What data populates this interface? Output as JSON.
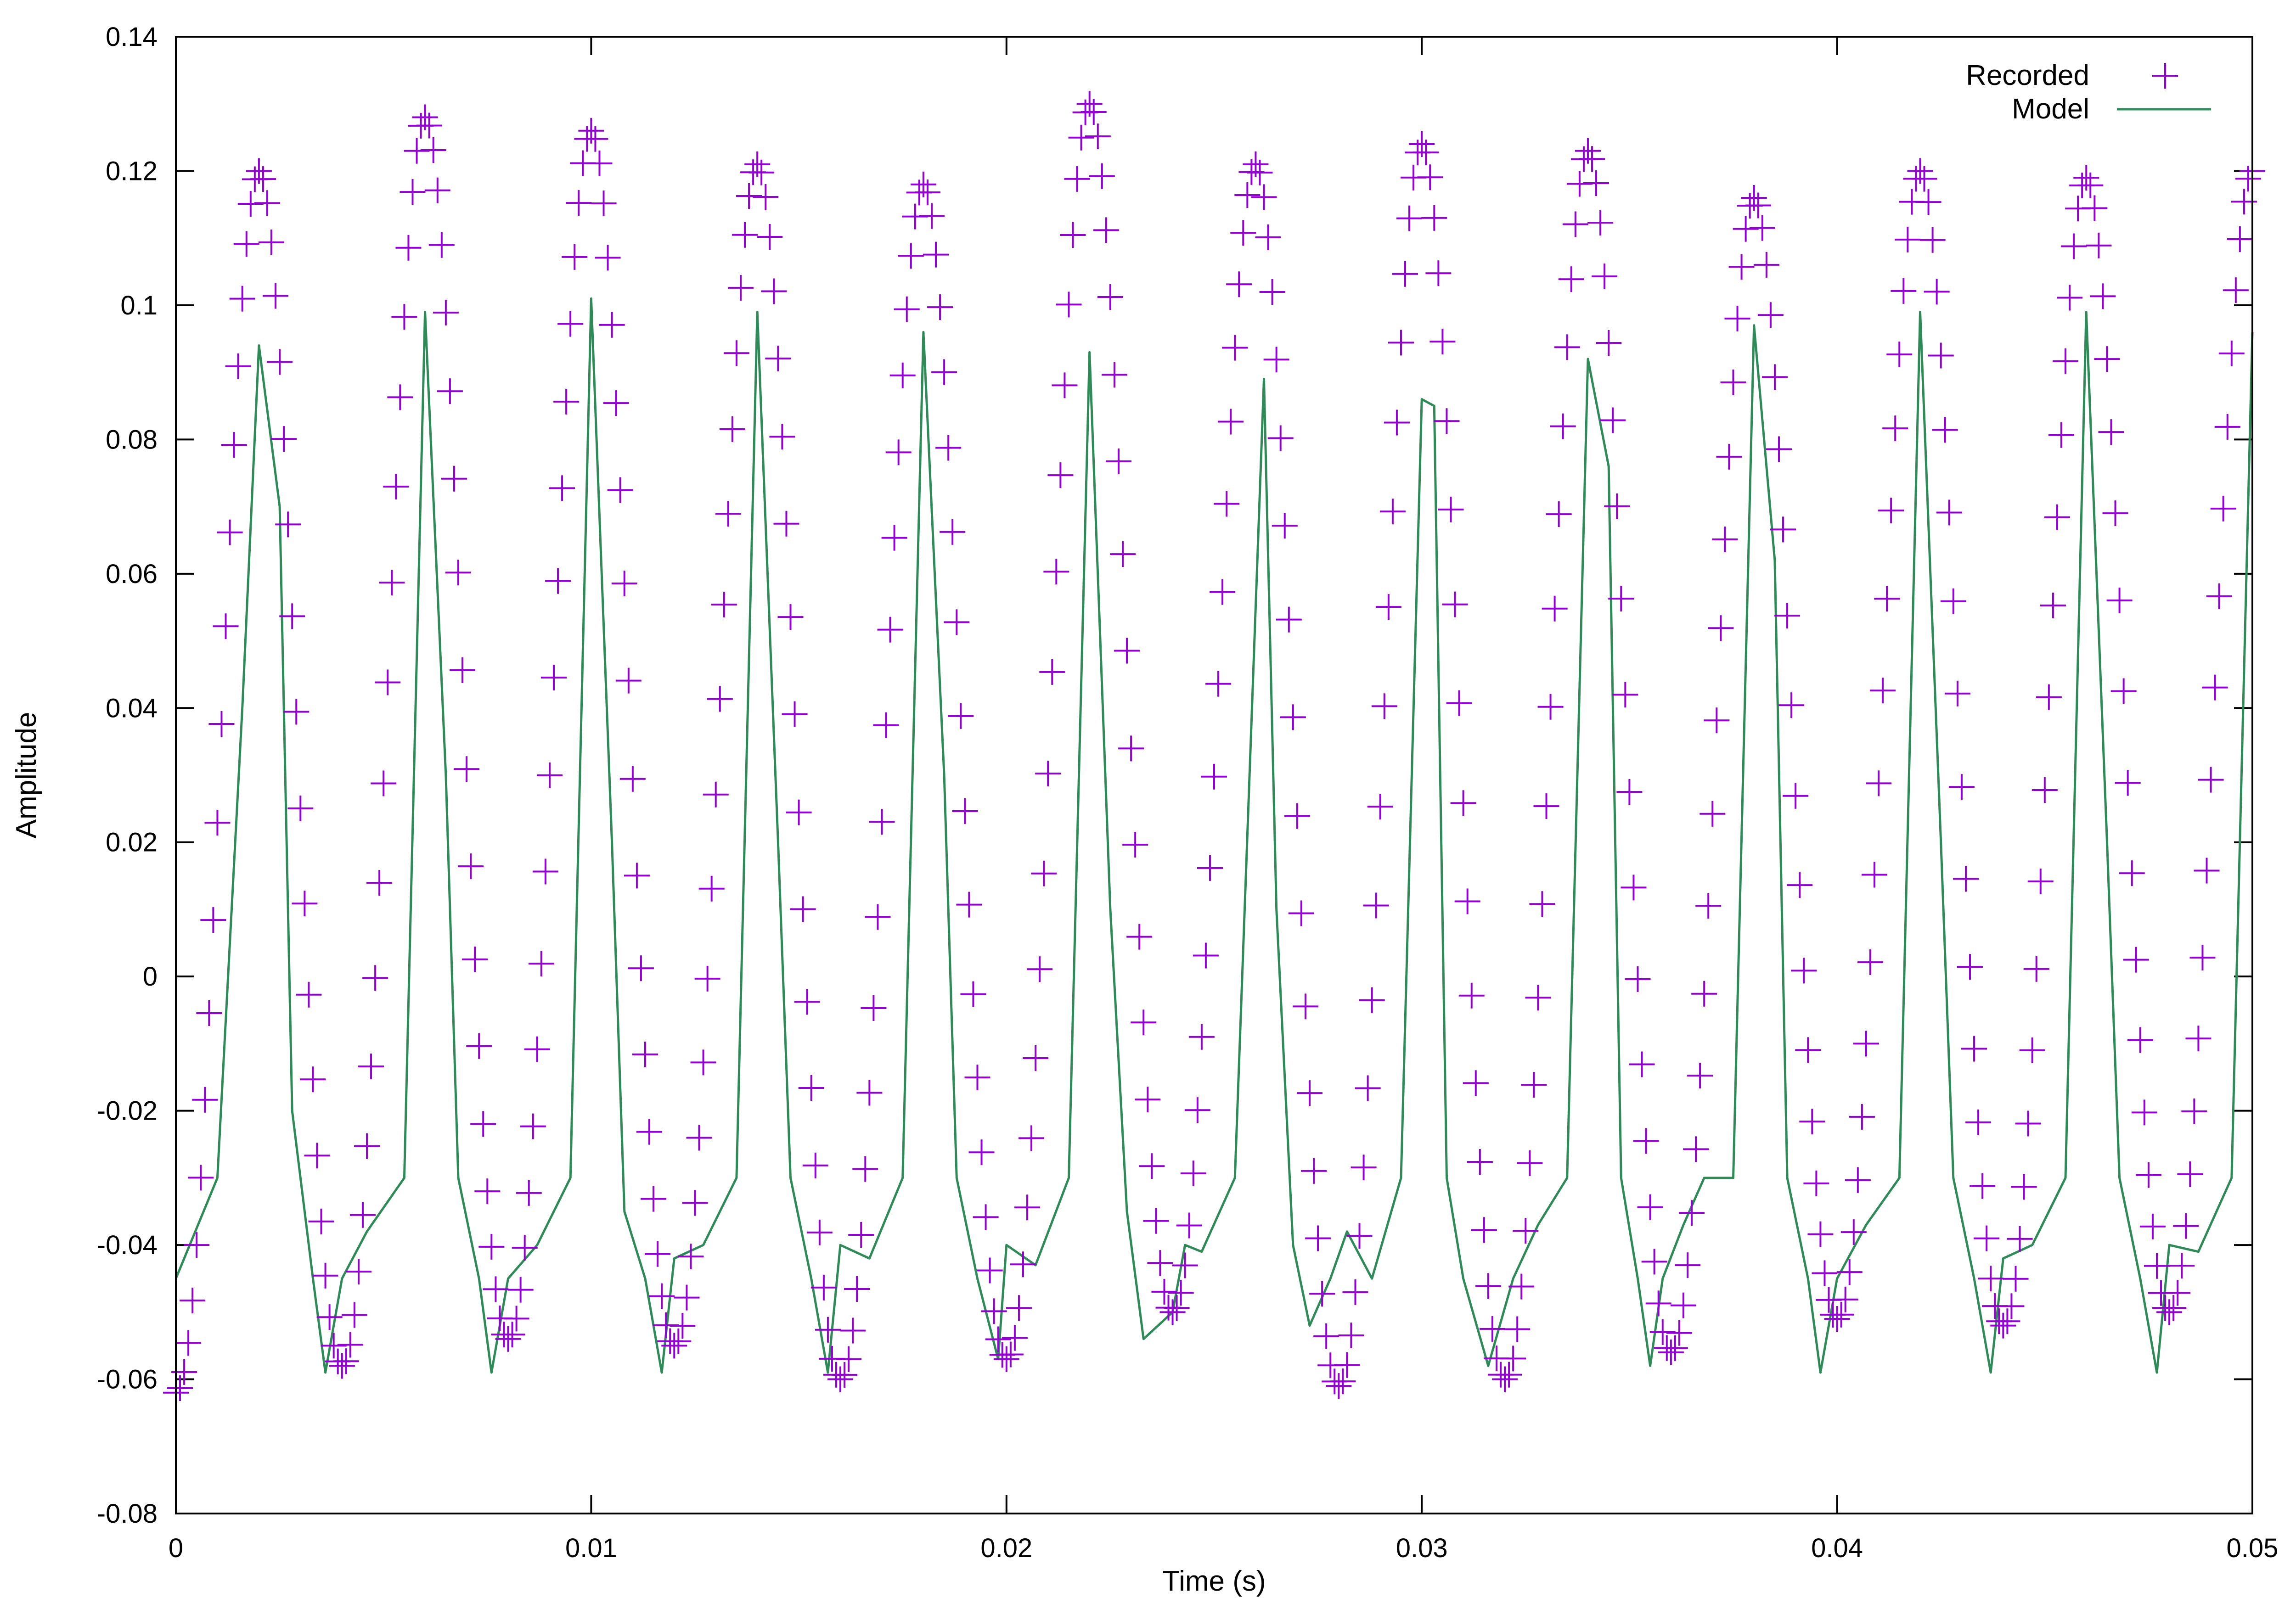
{
  "chart_data": {
    "type": "line",
    "title": "",
    "xlabel": "Time (s)",
    "ylabel": "Amplitude",
    "xlim": [
      0,
      0.05
    ],
    "ylim": [
      -0.08,
      0.14
    ],
    "x_ticks": [
      "0",
      "0.01",
      "0.02",
      "0.03",
      "0.04",
      "0.05"
    ],
    "x_tick_values": [
      0,
      0.01,
      0.02,
      0.03,
      0.04,
      0.05
    ],
    "y_ticks": [
      "-0.08",
      "-0.06",
      "-0.04",
      "-0.02",
      "0",
      "0.02",
      "0.04",
      "0.06",
      "0.08",
      "0.1",
      "0.12",
      "0.14"
    ],
    "y_tick_values": [
      -0.08,
      -0.06,
      -0.04,
      -0.02,
      0,
      0.02,
      0.04,
      0.06,
      0.08,
      0.1,
      0.12,
      0.14
    ],
    "grid": false,
    "legend_position": "top-right",
    "period": 0.004,
    "sample_step": 0.0001,
    "series": [
      {
        "name": "Recorded",
        "style": "points",
        "marker": "plus",
        "color": "#9400d3",
        "peaks": [
          0.12,
          0.128,
          0.126,
          0.121,
          0.118,
          0.13,
          0.121,
          0.124,
          0.123,
          0.116,
          0.12,
          0.119,
          0.12
        ],
        "troughs": [
          -0.062,
          -0.058,
          -0.054,
          -0.055,
          -0.06,
          -0.057,
          -0.05,
          -0.061,
          -0.06,
          -0.056,
          -0.051,
          -0.052,
          -0.05
        ]
      },
      {
        "name": "Model",
        "style": "line",
        "color": "#2e8b57",
        "x": [
          0,
          0.001,
          0.0016,
          0.002,
          0.0025,
          0.0028,
          0.0033,
          0.0036,
          0.004,
          0.0046,
          0.0055,
          0.006,
          0.0065,
          0.0068,
          0.0073,
          0.0076,
          0.008,
          0.0087,
          0.0095,
          0.01,
          0.0105,
          0.0108,
          0.0113,
          0.0117,
          0.012,
          0.0127,
          0.0135,
          0.014,
          0.0145,
          0.0148,
          0.0153,
          0.0157,
          0.016,
          0.0167,
          0.0175,
          0.018,
          0.0185,
          0.0188,
          0.0193,
          0.0198,
          0.02,
          0.0207,
          0.0215,
          0.022,
          0.0225,
          0.0229,
          0.0233,
          0.024,
          0.0243,
          0.0247,
          0.0255,
          0.0262,
          0.0265,
          0.0269,
          0.0273,
          0.0278,
          0.0282,
          0.0288,
          0.0295,
          0.03,
          0.0303,
          0.0306,
          0.031,
          0.0316,
          0.0322,
          0.0328,
          0.0335,
          0.034,
          0.0345,
          0.0348,
          0.0352,
          0.0355,
          0.0358,
          0.0363,
          0.0368,
          0.0375,
          0.038,
          0.0385,
          0.0388,
          0.0393,
          0.0396,
          0.04,
          0.0407,
          0.0415,
          0.042,
          0.0425,
          0.0428,
          0.0433,
          0.0437,
          0.044,
          0.0447,
          0.0455,
          0.046,
          0.0465,
          0.0468,
          0.0473,
          0.0477,
          0.048,
          0.0487,
          0.0495,
          0.05
        ],
        "y": [
          -0.045,
          -0.03,
          0.04,
          0.094,
          0.07,
          -0.02,
          -0.045,
          -0.059,
          -0.045,
          -0.038,
          -0.03,
          0.099,
          0.03,
          -0.03,
          -0.045,
          -0.059,
          -0.045,
          -0.04,
          -0.03,
          0.101,
          0.02,
          -0.035,
          -0.045,
          -0.059,
          -0.042,
          -0.04,
          -0.03,
          0.099,
          0.02,
          -0.03,
          -0.045,
          -0.059,
          -0.04,
          -0.042,
          -0.03,
          0.096,
          0.03,
          -0.03,
          -0.045,
          -0.057,
          -0.04,
          -0.043,
          -0.03,
          0.093,
          0.01,
          -0.035,
          -0.054,
          -0.05,
          -0.04,
          -0.041,
          -0.03,
          0.089,
          0.01,
          -0.04,
          -0.052,
          -0.045,
          -0.038,
          -0.045,
          -0.03,
          0.086,
          0.085,
          -0.03,
          -0.045,
          -0.058,
          -0.045,
          -0.037,
          -0.03,
          0.092,
          0.076,
          -0.03,
          -0.045,
          -0.058,
          -0.045,
          -0.037,
          -0.03,
          -0.03,
          0.097,
          0.062,
          -0.03,
          -0.045,
          -0.059,
          -0.045,
          -0.037,
          -0.03,
          0.099,
          0.02,
          -0.03,
          -0.045,
          -0.059,
          -0.042,
          -0.04,
          -0.03,
          0.099,
          0.02,
          -0.03,
          -0.045,
          -0.059,
          -0.04,
          -0.041,
          -0.03,
          0.096
        ]
      }
    ]
  }
}
